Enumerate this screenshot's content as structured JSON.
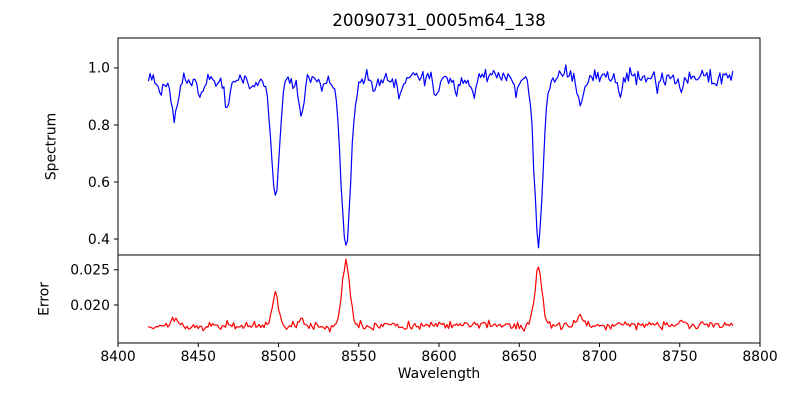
{
  "chart_data": {
    "type": "line",
    "title": "20090731_0005m64_138",
    "xlabel": "Wavelength",
    "xlim": [
      8400,
      8800
    ],
    "grid": false,
    "legend": null,
    "sampling": {
      "start": 8419,
      "end": 8783,
      "step": 1
    },
    "noise_seed": 20090731,
    "x_ticks": [
      {
        "value": 8400,
        "label": "8400"
      },
      {
        "value": 8450,
        "label": "8450"
      },
      {
        "value": 8500,
        "label": "8500"
      },
      {
        "value": 8550,
        "label": "8550"
      },
      {
        "value": 8600,
        "label": "8600"
      },
      {
        "value": 8650,
        "label": "8650"
      },
      {
        "value": 8700,
        "label": "8700"
      },
      {
        "value": 8750,
        "label": "8750"
      },
      {
        "value": 8800,
        "label": "8800"
      }
    ],
    "subplots": [
      {
        "name": "spectrum",
        "ylabel": "Spectrum",
        "color": "#0000ff",
        "ylim": [
          0.344,
          1.105
        ],
        "y_ticks": [
          {
            "value": 0.4,
            "label": "0.4"
          },
          {
            "value": 0.6,
            "label": "0.6"
          },
          {
            "value": 0.8,
            "label": "0.8"
          },
          {
            "value": 1.0,
            "label": "1.0"
          }
        ],
        "continuum": {
          "start": 0.955,
          "end": 0.972
        },
        "noise_sigma": 0.013,
        "features": [
          {
            "center": 8427,
            "amplitude": -0.05,
            "sigma": 1.5
          },
          {
            "center": 8435,
            "amplitude": -0.13,
            "sigma": 2.0
          },
          {
            "center": 8451,
            "amplitude": -0.05,
            "sigma": 1.5
          },
          {
            "center": 8468,
            "amplitude": -0.08,
            "sigma": 1.8
          },
          {
            "center": 8484,
            "amplitude": -0.04,
            "sigma": 1.5
          },
          {
            "center": 8498,
            "amplitude": -0.4,
            "sigma": 2.5
          },
          {
            "center": 8514,
            "amplitude": -0.12,
            "sigma": 1.8
          },
          {
            "center": 8527,
            "amplitude": -0.04,
            "sigma": 1.5
          },
          {
            "center": 8542,
            "amplitude": -0.59,
            "sigma": 3.0
          },
          {
            "center": 8560,
            "amplitude": -0.05,
            "sigma": 1.5
          },
          {
            "center": 8575,
            "amplitude": -0.06,
            "sigma": 1.5
          },
          {
            "center": 8598,
            "amplitude": -0.07,
            "sigma": 1.6
          },
          {
            "center": 8611,
            "amplitude": -0.05,
            "sigma": 1.5
          },
          {
            "center": 8621,
            "amplitude": -0.05,
            "sigma": 1.5
          },
          {
            "center": 8648,
            "amplitude": -0.05,
            "sigma": 1.5
          },
          {
            "center": 8662,
            "amplitude": -0.57,
            "sigma": 2.8
          },
          {
            "center": 8688,
            "amplitude": -0.11,
            "sigma": 2.0
          },
          {
            "center": 8713,
            "amplitude": -0.05,
            "sigma": 1.5
          },
          {
            "center": 8736,
            "amplitude": -0.04,
            "sigma": 1.5
          },
          {
            "center": 8751,
            "amplitude": -0.06,
            "sigma": 1.6
          },
          {
            "center": 8772,
            "amplitude": -0.04,
            "sigma": 1.5
          }
        ]
      },
      {
        "name": "error",
        "ylabel": "Error",
        "color": "#ff0000",
        "ylim": [
          0.0146,
          0.0271
        ],
        "y_ticks": [
          {
            "value": 0.02,
            "label": "0.020"
          },
          {
            "value": 0.025,
            "label": "0.025"
          }
        ],
        "continuum": {
          "start": 0.0169,
          "end": 0.0172
        },
        "noise_sigma": 0.00028,
        "features": [
          {
            "center": 8435,
            "amplitude": 0.0013,
            "sigma": 1.8
          },
          {
            "center": 8468,
            "amplitude": 0.0006,
            "sigma": 1.6
          },
          {
            "center": 8498,
            "amplitude": 0.0044,
            "sigma": 2.0
          },
          {
            "center": 8514,
            "amplitude": 0.0008,
            "sigma": 1.6
          },
          {
            "center": 8542,
            "amplitude": 0.009,
            "sigma": 2.4
          },
          {
            "center": 8598,
            "amplitude": 0.0005,
            "sigma": 1.6
          },
          {
            "center": 8662,
            "amplitude": 0.0082,
            "sigma": 2.2
          },
          {
            "center": 8688,
            "amplitude": 0.0016,
            "sigma": 1.8
          },
          {
            "center": 8751,
            "amplitude": 0.0008,
            "sigma": 1.6
          }
        ]
      }
    ]
  }
}
